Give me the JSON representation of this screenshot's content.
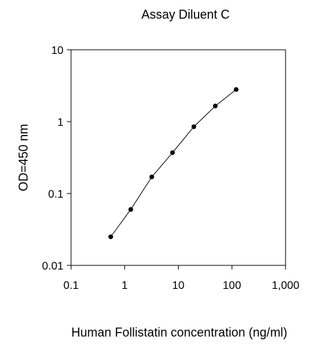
{
  "chart_data": {
    "type": "line",
    "title": "Assay Diluent C",
    "xlabel": "Human Follistatin concentration (ng/ml)",
    "ylabel": "OD=450 nm",
    "x_scale": "log",
    "y_scale": "log",
    "xlim": [
      0.1,
      1000
    ],
    "ylim": [
      0.01,
      10
    ],
    "x_ticks": [
      {
        "value": 0.1,
        "label": "0.1"
      },
      {
        "value": 1,
        "label": "1"
      },
      {
        "value": 10,
        "label": "10"
      },
      {
        "value": 100,
        "label": "100"
      },
      {
        "value": 1000,
        "label": "1,000"
      }
    ],
    "y_ticks": [
      {
        "value": 0.01,
        "label": "0.01"
      },
      {
        "value": 0.1,
        "label": "0.1"
      },
      {
        "value": 1,
        "label": "1"
      },
      {
        "value": 10,
        "label": "10"
      }
    ],
    "grid": false,
    "legend": "none",
    "series": [
      {
        "color": "#000000",
        "marker": "circle",
        "x": [
          0.55,
          1.3,
          3.2,
          7.8,
          19.5,
          49,
          120
        ],
        "y": [
          0.025,
          0.06,
          0.17,
          0.37,
          0.85,
          1.65,
          2.8
        ]
      }
    ]
  }
}
